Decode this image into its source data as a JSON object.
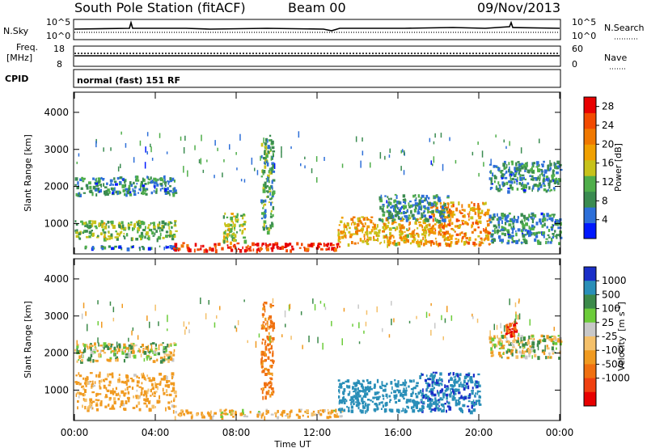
{
  "header": {
    "station": "South Pole Station (fitACF)",
    "beam": "Beam 00",
    "date": "09/Nov/2013"
  },
  "top_panels": {
    "nsky_label": "N.Sky",
    "noise_left_ticks": [
      "10^5",
      "10^0"
    ],
    "noise_right_ticks": [
      "10^5",
      "10^0"
    ],
    "nsearch_label": "N.Search",
    "freq_label_line1": "Freq.",
    "freq_label_line2": "[MHz]",
    "freq_ticks": [
      "18",
      "8"
    ],
    "nave_ticks": [
      "60",
      "0"
    ],
    "nave_label": "Nave",
    "cpid_label": "CPID",
    "cpid_text": "normal (fast) 151 RF"
  },
  "colors": {
    "power_scale": [
      "#0018ff",
      "#2d6fd8",
      "#3a8b50",
      "#4fae4a",
      "#c7c21a",
      "#f0a000",
      "#f07800",
      "#f24a00",
      "#e80000"
    ],
    "velocity_scale": [
      "#1a2fc8",
      "#2a8fb8",
      "#3c8a4a",
      "#6ccc3a",
      "#c8c8c8",
      "#f4c06a",
      "#f09a20",
      "#f07010",
      "#f04010",
      "#e80000"
    ]
  },
  "chart_data": [
    {
      "type": "heatmap",
      "title": "Power",
      "ylabel": "Slant Range [km]",
      "x_ticks": [
        "00:00",
        "04:00",
        "08:00",
        "12:00",
        "16:00",
        "20:00",
        "00:00"
      ],
      "y_ticks": [
        "1000",
        "2000",
        "3000",
        "4000"
      ],
      "xlim_hours": [
        0,
        24
      ],
      "ylim_km": [
        180,
        4500
      ],
      "colorbar_label": "Power [dB]",
      "colorbar_ticks": [
        "4",
        "8",
        "12",
        "16",
        "20",
        "24",
        "28"
      ],
      "colorbar_range": [
        0,
        30
      ],
      "regions": [
        {
          "t0": 0.0,
          "t1": 5.0,
          "r0": 1800,
          "r1": 2300,
          "value": 8
        },
        {
          "t0": 0.0,
          "t1": 5.0,
          "r0": 600,
          "r1": 1100,
          "value": 12
        },
        {
          "t0": 0.5,
          "t1": 5.0,
          "r0": 350,
          "r1": 420,
          "value": 6
        },
        {
          "t0": 4.8,
          "t1": 13.2,
          "r0": 300,
          "r1": 500,
          "value": 27
        },
        {
          "t0": 9.2,
          "t1": 9.8,
          "r0": 800,
          "r1": 3400,
          "value": 10
        },
        {
          "t0": 7.3,
          "t1": 8.4,
          "r0": 500,
          "r1": 1300,
          "value": 14
        },
        {
          "t0": 13.0,
          "t1": 17.5,
          "r0": 450,
          "r1": 1200,
          "value": 18
        },
        {
          "t0": 17.5,
          "t1": 20.5,
          "r0": 450,
          "r1": 1600,
          "value": 20
        },
        {
          "t0": 15.0,
          "t1": 18.5,
          "r0": 1100,
          "r1": 1800,
          "value": 8
        },
        {
          "t0": 20.5,
          "t1": 24.0,
          "r0": 500,
          "r1": 1300,
          "value": 8
        },
        {
          "t0": 20.5,
          "t1": 24.0,
          "r0": 1900,
          "r1": 2700,
          "value": 8
        }
      ]
    },
    {
      "type": "heatmap",
      "title": "Velocity",
      "ylabel": "Slant Range [km]",
      "xlabel": "Time UT",
      "x_ticks": [
        "00:00",
        "04:00",
        "08:00",
        "12:00",
        "16:00",
        "20:00",
        "00:00"
      ],
      "y_ticks": [
        "1000",
        "2000",
        "3000",
        "4000"
      ],
      "xlim_hours": [
        0,
        24
      ],
      "ylim_km": [
        180,
        4500
      ],
      "colorbar_label_main": "Velocity",
      "colorbar_label_unit": "[m s",
      "colorbar_label_sup": "-1",
      "colorbar_label_end": "]",
      "colorbar_ticks": [
        "1000",
        "500",
        "100",
        "25",
        "-25",
        "-100",
        "-500",
        "-1000"
      ],
      "regions": [
        {
          "t0": 0.0,
          "t1": 5.0,
          "r0": 1800,
          "r1": 2300,
          "value": 0
        },
        {
          "t0": 0.0,
          "t1": 5.0,
          "r0": 500,
          "r1": 1500,
          "value": -200
        },
        {
          "t0": 4.8,
          "t1": 13.2,
          "r0": 300,
          "r1": 500,
          "value": -150
        },
        {
          "t0": 9.2,
          "t1": 9.8,
          "r0": 800,
          "r1": 3400,
          "value": -600
        },
        {
          "t0": 13.0,
          "t1": 17.0,
          "r0": 450,
          "r1": 1300,
          "value": 700
        },
        {
          "t0": 17.0,
          "t1": 20.0,
          "r0": 450,
          "r1": 1500,
          "value": 900
        },
        {
          "t0": 20.5,
          "t1": 24.0,
          "r0": 1900,
          "r1": 2500,
          "value": 0
        },
        {
          "t0": 21.3,
          "t1": 21.8,
          "r0": 2500,
          "r1": 2900,
          "value": -1000
        }
      ]
    }
  ]
}
